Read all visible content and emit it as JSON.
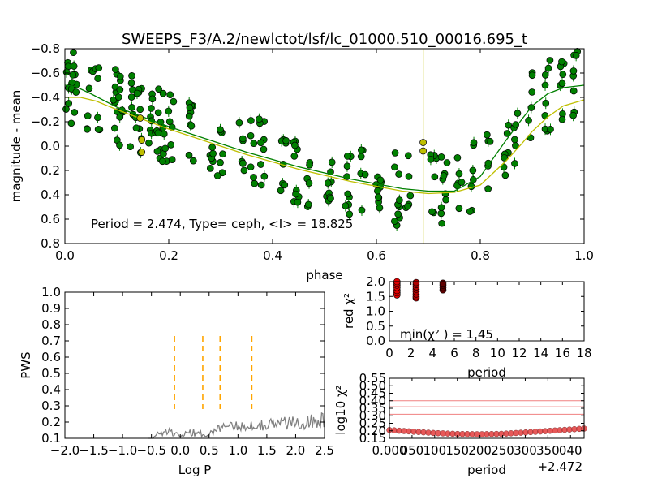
{
  "title": "SWEEPS_F3/A.2/newlctot/lsf/lc_01000.510_00016.695_t",
  "chart_data": [
    {
      "type": "scatter",
      "id": "lightcurve",
      "xlabel": "phase",
      "ylabel": "magnitude - mean",
      "xlim": [
        0.0,
        1.0
      ],
      "ylim": [
        0.8,
        -0.8
      ],
      "x_ticks": [
        "0.0",
        "0.2",
        "0.4",
        "0.6",
        "0.8",
        "1.0"
      ],
      "y_ticks": [
        "−0.8",
        "−0.6",
        "−0.4",
        "−0.2",
        "0.0",
        "0.2",
        "0.4",
        "0.6",
        "0.8"
      ],
      "annotation": "Period = 2.474, Type= ceph, <I> = 18.825",
      "vline_phase": 0.69,
      "colors": {
        "points": "#008000",
        "highlight": "#bfbf00",
        "fit_green": "#008000",
        "fit_yellow": "#bfbf00",
        "vline": "#bfbf00"
      },
      "highlight_points": [
        {
          "x": 0.145,
          "y": -0.23
        },
        {
          "x": 0.148,
          "y": -0.05
        },
        {
          "x": 0.148,
          "y": 0.05
        },
        {
          "x": 0.69,
          "y": -0.03
        },
        {
          "x": 0.69,
          "y": 0.04
        }
      ],
      "fit_green": {
        "x": [
          0.0,
          0.02,
          0.05,
          0.1,
          0.15,
          0.2,
          0.25,
          0.3,
          0.35,
          0.4,
          0.45,
          0.5,
          0.55,
          0.6,
          0.65,
          0.7,
          0.75,
          0.8,
          0.85,
          0.88,
          0.9,
          0.93,
          0.96,
          1.0
        ],
        "y": [
          -0.5,
          -0.49,
          -0.43,
          -0.32,
          -0.24,
          -0.16,
          -0.09,
          -0.02,
          0.05,
          0.11,
          0.17,
          0.22,
          0.27,
          0.31,
          0.35,
          0.37,
          0.37,
          0.25,
          -0.05,
          -0.22,
          -0.33,
          -0.43,
          -0.48,
          -0.5
        ]
      },
      "fit_yellow": {
        "x": [
          0.0,
          0.03,
          0.06,
          0.1,
          0.15,
          0.2,
          0.25,
          0.3,
          0.35,
          0.4,
          0.45,
          0.5,
          0.55,
          0.6,
          0.65,
          0.7,
          0.75,
          0.8,
          0.85,
          0.88,
          0.9,
          0.93,
          0.96,
          1.0
        ],
        "y": [
          -0.4,
          -0.4,
          -0.37,
          -0.3,
          -0.22,
          -0.14,
          -0.07,
          0.0,
          0.07,
          0.13,
          0.19,
          0.24,
          0.29,
          0.33,
          0.37,
          0.39,
          0.38,
          0.32,
          0.12,
          -0.02,
          -0.12,
          -0.24,
          -0.33,
          -0.38
        ]
      }
    },
    {
      "type": "line",
      "id": "periodogram",
      "xlabel": "Log P",
      "ylabel": "PWS",
      "xlim": [
        -2.0,
        2.5
      ],
      "ylim": [
        0.1,
        1.0
      ],
      "x_ticks": [
        "−2.0",
        "−1.5",
        "−1.0",
        "−0.5",
        "0.0",
        "0.5",
        "1.0",
        "1.5",
        "2.0",
        "2.5"
      ],
      "y_ticks": [
        "0.1",
        "0.2",
        "0.3",
        "0.4",
        "0.5",
        "0.6",
        "0.7",
        "0.8",
        "0.9",
        "1.0"
      ],
      "marked_logP": [
        -0.1,
        0.39,
        0.69,
        1.24
      ],
      "marker_range": [
        0.28,
        0.73
      ],
      "colors": {
        "line": "#808080",
        "markers": "#ffa500"
      }
    },
    {
      "type": "scatter",
      "id": "red-chi2",
      "xlabel": "period",
      "ylabel": "red χ²",
      "xlim": [
        0,
        18
      ],
      "ylim": [
        0.0,
        2.0
      ],
      "x_ticks": [
        "0",
        "2",
        "4",
        "6",
        "8",
        "10",
        "12",
        "14",
        "16",
        "18"
      ],
      "y_ticks": [
        "0.0",
        "0.5",
        "1.0",
        "1.5",
        "2.0"
      ],
      "annotation": "min(χ² ) = 1.45",
      "min_chi2": 1.45,
      "point_groups": [
        {
          "period": 0.7,
          "values": [
            1.55,
            1.62,
            1.7,
            1.8,
            1.88,
            1.95,
            2.0
          ],
          "color": "#e00000"
        },
        {
          "period": 2.47,
          "values": [
            1.45,
            1.5,
            1.58,
            1.66,
            1.74,
            1.82,
            1.9,
            1.97
          ],
          "color": "#b00000"
        },
        {
          "period": 4.95,
          "values": [
            1.72,
            1.8,
            1.88,
            1.95
          ],
          "color": "#600000"
        }
      ]
    },
    {
      "type": "scatter",
      "id": "log-chi2",
      "xlabel": "period",
      "ylabel": "log10 χ²",
      "x_offset_label": "+2.472",
      "xlim": [
        0.0,
        0.0043
      ],
      "ylim": [
        0.15,
        0.55
      ],
      "x_ticks": [
        "0.000",
        "0.0005",
        "0.0010",
        "0.0015",
        "0.0020",
        "0.0025",
        "0.0030",
        "0.0035",
        "0.0040"
      ],
      "x_tick_labels": [
        "0.000",
        "050",
        "100",
        "150",
        "200",
        "250",
        "300",
        "350",
        "040"
      ],
      "y_ticks": [
        "0.15",
        "0.20",
        "0.25",
        "0.30",
        "0.35",
        "0.40",
        "0.45",
        "0.50",
        "0.55"
      ],
      "hlines": [
        0.31,
        0.36,
        0.4
      ],
      "curve": {
        "x": [
          0.0,
          0.0005,
          0.001,
          0.0015,
          0.002,
          0.0025,
          0.003,
          0.0035,
          0.0043
        ],
        "y": [
          0.205,
          0.195,
          0.185,
          0.179,
          0.177,
          0.18,
          0.189,
          0.199,
          0.215
        ]
      },
      "colors": {
        "points": "#e03030",
        "hlines": "#f08080"
      }
    }
  ]
}
